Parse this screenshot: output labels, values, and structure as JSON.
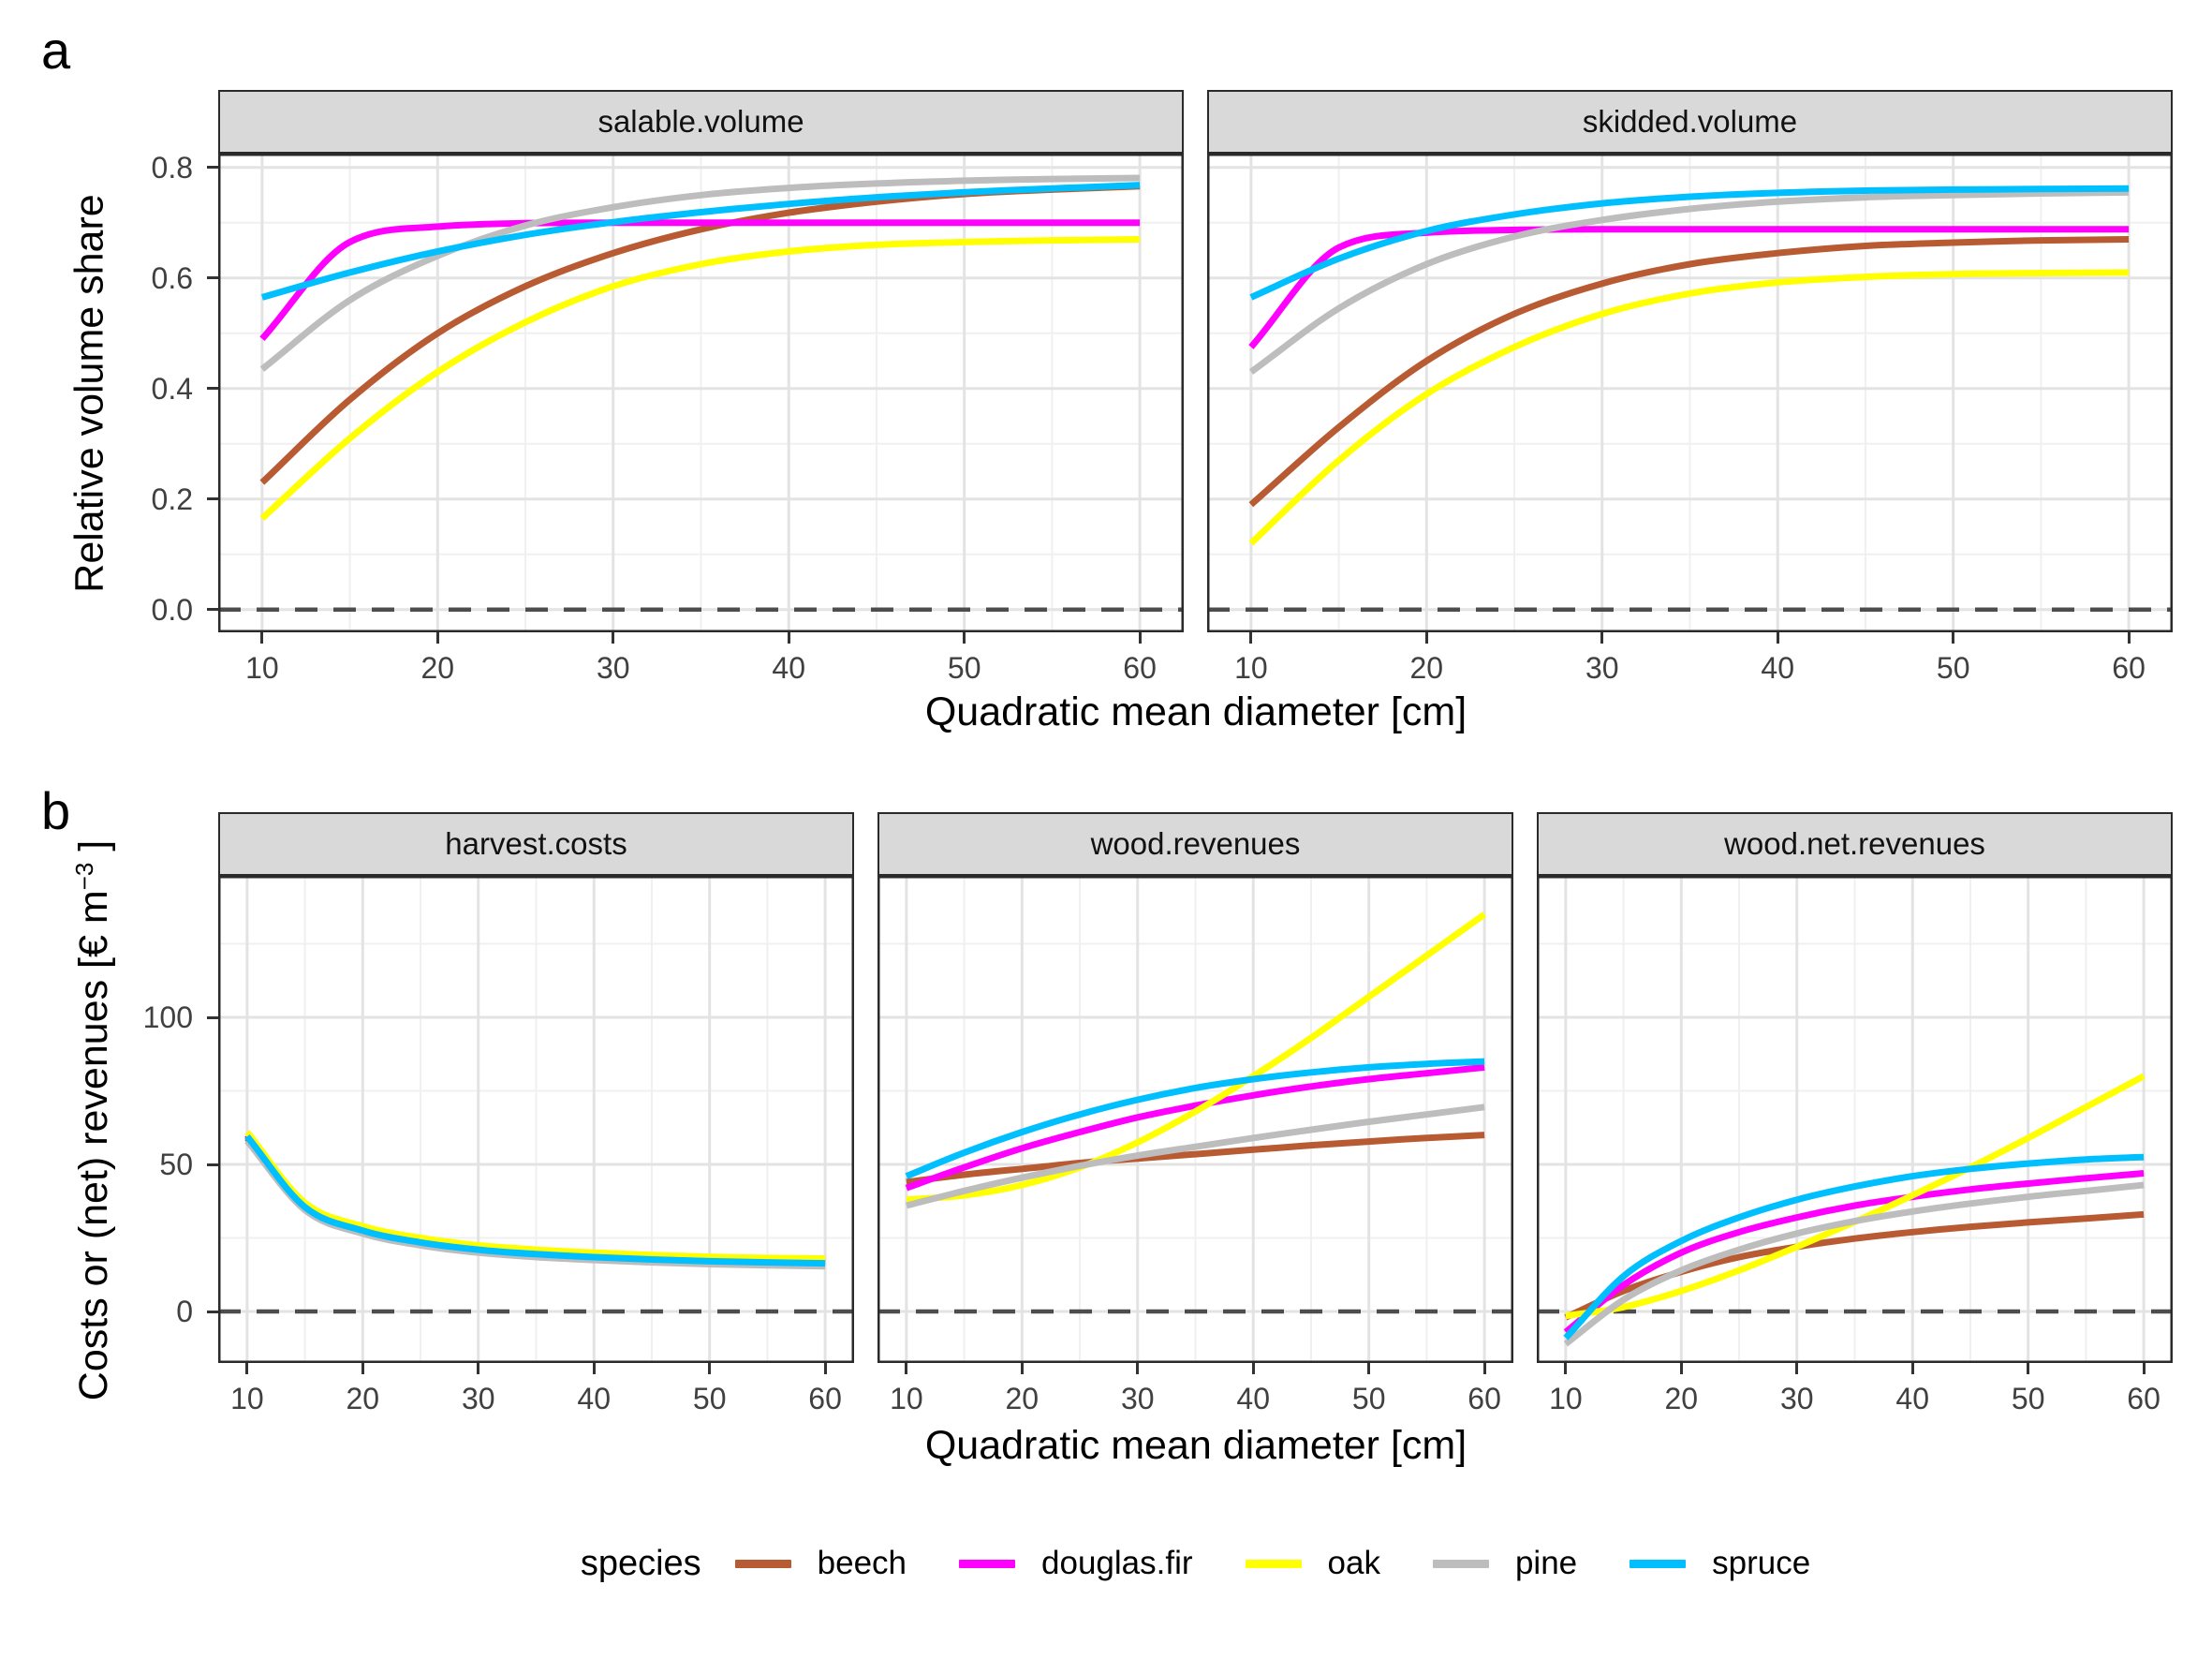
{
  "page": {
    "background": "#FFFFFF"
  },
  "panel_tags": {
    "a": "a",
    "b": "b"
  },
  "legend": {
    "title": "species",
    "entries": [
      {
        "label": "beech",
        "color": "#B85B32"
      },
      {
        "label": "douglas.fir",
        "color": "#FF00FF"
      },
      {
        "label": "oak",
        "color": "#FFFF00"
      },
      {
        "label": "pine",
        "color": "#BDBDBD"
      },
      {
        "label": "spruce",
        "color": "#00BFFF"
      }
    ]
  },
  "colors": {
    "strip_bg": "#D9D9D9",
    "strip_border": "#2A2A2A",
    "panel_border": "#2A2A2A",
    "grid_major": "#E3E3E3",
    "grid_minor": "#F0F0F0",
    "axis_text": "#404040",
    "tick_mark": "#333333",
    "zero_line": "#4D4D4D"
  },
  "chart_data": [
    {
      "tag": "a",
      "type": "line",
      "xlabel": "Quadratic mean diameter [cm]",
      "ylabel": "Relative volume share",
      "legend_position": "bottom",
      "grid": true,
      "x": [
        10,
        15,
        20,
        25,
        30,
        35,
        40,
        45,
        50,
        55,
        60
      ],
      "xlim": [
        7.5,
        62.5
      ],
      "ylim": [
        -0.041,
        0.825
      ],
      "x_major_ticks": [
        10,
        20,
        30,
        40,
        50,
        60
      ],
      "x_tick_labels": [
        "10",
        "20",
        "30",
        "40",
        "50",
        "60"
      ],
      "x_minor_ticks": [
        15,
        25,
        35,
        45,
        55
      ],
      "y_major_ticks": [
        0.0,
        0.2,
        0.4,
        0.6,
        0.8
      ],
      "y_tick_labels": [
        "0.0",
        "0.2",
        "0.4",
        "0.6",
        "0.8"
      ],
      "y_minor_ticks": [
        0.1,
        0.3,
        0.5,
        0.7
      ],
      "zero_line": 0,
      "facets": [
        {
          "label": "salable.volume",
          "series": [
            {
              "name": "beech",
              "values": [
                0.23,
                0.38,
                0.5,
                0.585,
                0.645,
                0.688,
                0.718,
                0.738,
                0.752,
                0.76,
                0.766
              ]
            },
            {
              "name": "douglas.fir",
              "values": [
                0.49,
                0.665,
                0.693,
                0.699,
                0.7,
                0.7,
                0.7,
                0.7,
                0.7,
                0.7,
                0.7
              ]
            },
            {
              "name": "oak",
              "values": [
                0.165,
                0.31,
                0.43,
                0.52,
                0.585,
                0.625,
                0.648,
                0.66,
                0.665,
                0.668,
                0.67
              ]
            },
            {
              "name": "pine",
              "values": [
                0.435,
                0.56,
                0.64,
                0.695,
                0.728,
                0.75,
                0.763,
                0.771,
                0.776,
                0.779,
                0.781
              ]
            },
            {
              "name": "spruce",
              "values": [
                0.565,
                0.61,
                0.648,
                0.678,
                0.701,
                0.719,
                0.734,
                0.746,
                0.755,
                0.762,
                0.768
              ]
            }
          ]
        },
        {
          "label": "skidded.volume",
          "series": [
            {
              "name": "beech",
              "values": [
                0.19,
                0.33,
                0.45,
                0.535,
                0.59,
                0.625,
                0.645,
                0.658,
                0.664,
                0.668,
                0.67
              ]
            },
            {
              "name": "douglas.fir",
              "values": [
                0.475,
                0.655,
                0.682,
                0.687,
                0.688,
                0.688,
                0.688,
                0.688,
                0.688,
                0.688,
                0.688
              ]
            },
            {
              "name": "oak",
              "values": [
                0.12,
                0.27,
                0.39,
                0.475,
                0.535,
                0.572,
                0.592,
                0.602,
                0.607,
                0.609,
                0.61
              ]
            },
            {
              "name": "pine",
              "values": [
                0.43,
                0.545,
                0.625,
                0.675,
                0.705,
                0.725,
                0.738,
                0.746,
                0.75,
                0.753,
                0.755
              ]
            },
            {
              "name": "spruce",
              "values": [
                0.565,
                0.635,
                0.685,
                0.715,
                0.735,
                0.747,
                0.754,
                0.758,
                0.76,
                0.761,
                0.762
              ]
            }
          ]
        }
      ]
    },
    {
      "tag": "b",
      "type": "line",
      "xlabel": "Quadratic mean diameter [cm]",
      "ylabel": "Costs or (net) revenues [€ m⁻³ ]",
      "ylabel_pre": "Costs or (net) revenues [€ m",
      "ylabel_sup": "−3",
      "ylabel_post": " ]",
      "legend_position": "bottom",
      "grid": true,
      "x": [
        10,
        15,
        20,
        25,
        30,
        35,
        40,
        45,
        50,
        55,
        60
      ],
      "xlim": [
        7.5,
        62.5
      ],
      "ylim": [
        -17.5,
        148.1
      ],
      "x_major_ticks": [
        10,
        20,
        30,
        40,
        50,
        60
      ],
      "x_tick_labels": [
        "10",
        "20",
        "30",
        "40",
        "50",
        "60"
      ],
      "x_minor_ticks": [
        15,
        25,
        35,
        45,
        55
      ],
      "y_major_ticks": [
        0,
        50,
        100
      ],
      "y_tick_labels": [
        "0",
        "50",
        "100"
      ],
      "y_minor_ticks": [
        25,
        75,
        125
      ],
      "zero_line": 0,
      "facets": [
        {
          "label": "harvest.costs",
          "series": [
            {
              "name": "beech",
              "values": [
                59,
                35.5,
                27.5,
                23.5,
                21,
                19.5,
                18.5,
                17.7,
                17.1,
                16.7,
                16.4
              ]
            },
            {
              "name": "douglas.fir",
              "values": [
                60,
                36,
                28,
                24,
                21.5,
                20,
                19,
                18.2,
                17.6,
                17.2,
                17
              ]
            },
            {
              "name": "oak",
              "values": [
                61,
                37,
                29,
                25,
                22.5,
                21,
                20,
                19.2,
                18.6,
                18.2,
                18
              ]
            },
            {
              "name": "pine",
              "values": [
                58,
                34.5,
                26.5,
                22.5,
                20,
                18.5,
                17.5,
                16.7,
                16.1,
                15.7,
                15.4
              ]
            },
            {
              "name": "spruce",
              "values": [
                59.5,
                35.5,
                27.5,
                23.5,
                21,
                19.5,
                18.5,
                17.7,
                17.1,
                16.7,
                16.4
              ]
            }
          ]
        },
        {
          "label": "wood.revenues",
          "series": [
            {
              "name": "beech",
              "values": [
                44,
                46.5,
                48.5,
                50.5,
                52,
                53.5,
                55,
                56.5,
                57.8,
                59,
                60
              ]
            },
            {
              "name": "douglas.fir",
              "values": [
                42,
                49,
                55.5,
                61,
                66,
                70,
                73.5,
                76.5,
                79,
                81,
                83
              ]
            },
            {
              "name": "oak",
              "values": [
                38,
                39.5,
                43,
                49,
                57.5,
                68,
                80,
                93,
                107,
                121,
                135
              ]
            },
            {
              "name": "pine",
              "values": [
                36,
                41,
                45.5,
                49.5,
                53,
                56,
                59,
                61.8,
                64.5,
                67,
                69.5
              ]
            },
            {
              "name": "spruce",
              "values": [
                46,
                54,
                61,
                67,
                72,
                76,
                79,
                81.3,
                83,
                84.2,
                85
              ]
            }
          ]
        },
        {
          "label": "wood.net.revenues",
          "series": [
            {
              "name": "beech",
              "values": [
                -2,
                7,
                13.5,
                18.5,
                22,
                24.8,
                27,
                28.8,
                30.3,
                31.6,
                33
              ]
            },
            {
              "name": "douglas.fir",
              "values": [
                -7,
                9,
                20,
                27,
                32,
                36,
                39,
                41.5,
                43.5,
                45.3,
                47
              ]
            },
            {
              "name": "oak",
              "values": [
                -1.5,
                1.5,
                7,
                14,
                22,
                30.5,
                39.5,
                49,
                59,
                69.5,
                80
              ]
            },
            {
              "name": "pine",
              "values": [
                -11,
                4,
                14,
                21,
                26.5,
                30.7,
                34,
                36.7,
                39,
                41,
                43
              ]
            },
            {
              "name": "spruce",
              "values": [
                -9,
                12,
                24,
                32,
                38,
                42.5,
                46,
                48.5,
                50.3,
                51.7,
                52.5
              ]
            }
          ]
        }
      ]
    }
  ]
}
